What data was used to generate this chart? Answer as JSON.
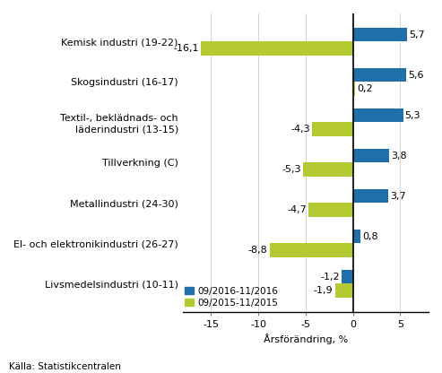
{
  "categories": [
    "Livsmedelsindustri (10-11)",
    "El- och elektronikindustri (26-27)",
    "Metallindustri (24-30)",
    "Tillverkning (C)",
    "Textil-, beklädnads- och\nläderindustri (13-15)",
    "Skogsindustri (16-17)",
    "Kemisk industri (19-22)"
  ],
  "values_2016": [
    -1.2,
    0.8,
    3.7,
    3.8,
    5.3,
    5.6,
    5.7
  ],
  "values_2015": [
    -1.9,
    -8.8,
    -4.7,
    -5.3,
    -4.3,
    0.2,
    -16.1
  ],
  "color_2016": "#1f6fa8",
  "color_2015": "#b5c932",
  "legend_2016": "09/2016-11/2016",
  "legend_2015": "09/2015-11/2015",
  "xlabel": "Årsförändring, %",
  "xlim": [
    -18,
    8
  ],
  "xticks": [
    -15,
    -10,
    -5,
    0,
    5
  ],
  "source": "Källa: Statistikcentralen",
  "bar_height": 0.35,
  "label_fontsize": 8,
  "tick_fontsize": 8
}
